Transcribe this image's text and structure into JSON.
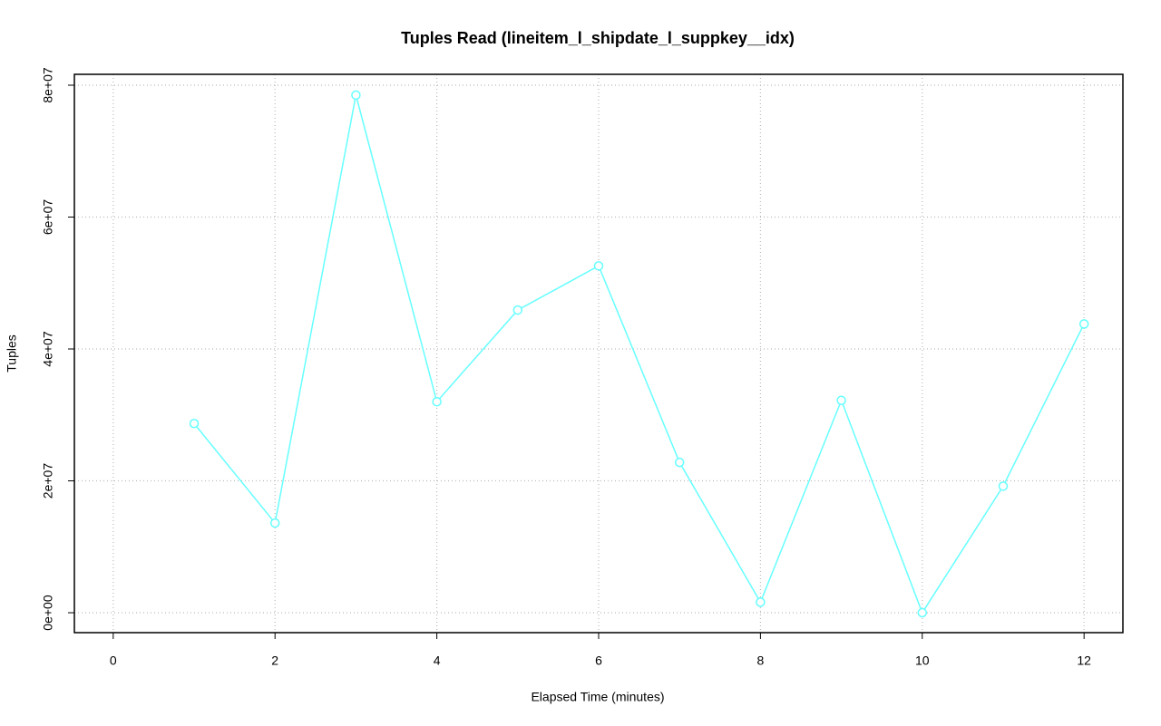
{
  "chart_data": {
    "type": "line",
    "title": "Tuples Read (lineitem_l_shipdate_l_suppkey__idx)",
    "x_label": "Elapsed Time (minutes)",
    "y_label": "Tuples",
    "x": [
      1,
      2,
      3,
      4,
      5,
      6,
      7,
      8,
      9,
      10,
      11,
      12
    ],
    "series": [
      {
        "name": "Tuples",
        "color": "#66ffff",
        "values": [
          28700000,
          13600000,
          78500000,
          32000000,
          45900000,
          52600000,
          22800000,
          1600000,
          32200000,
          0,
          19200000,
          43800000
        ]
      }
    ],
    "xlim": [
      -0.48,
      12.48
    ],
    "xticks": [
      0,
      2,
      4,
      6,
      8,
      10,
      12
    ],
    "ylim": [
      -3020000,
      81650000
    ],
    "yticks": [
      {
        "value": 0,
        "label": "0e+00"
      },
      {
        "value": 20000000,
        "label": "2e+07"
      },
      {
        "value": 40000000,
        "label": "4e+07"
      },
      {
        "value": 60000000,
        "label": "6e+07"
      },
      {
        "value": 80000000,
        "label": "8e+07"
      }
    ],
    "grid": true
  }
}
